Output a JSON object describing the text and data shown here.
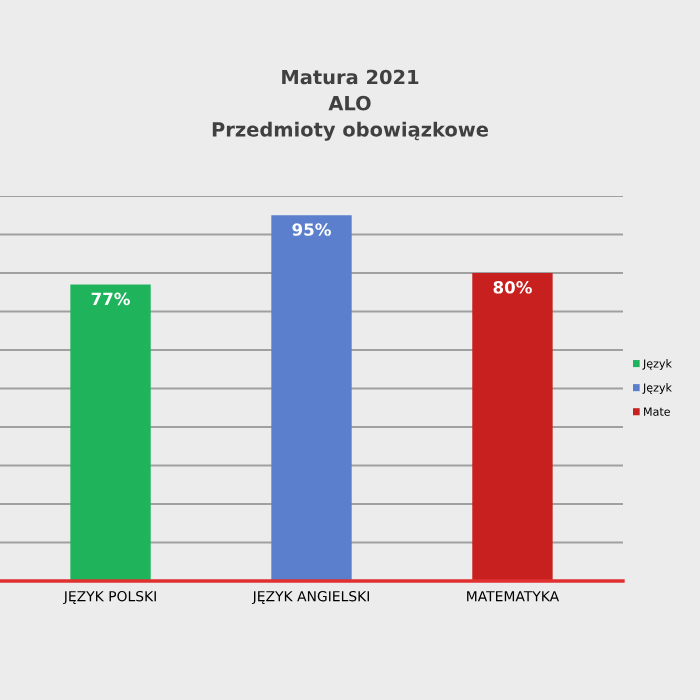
{
  "chart_data": {
    "type": "bar",
    "title": "Matura 2021\nALO\nPrzedmioty obowiązkowe",
    "categories": [
      "JĘZYK POLSKI",
      "JĘZYK ANGIELSKI",
      "MATEMATYKA"
    ],
    "series": [
      {
        "name": "Język",
        "color": "#1fb45c",
        "values": [
          77,
          null,
          null
        ],
        "value_labels": [
          "77%",
          null,
          null
        ]
      },
      {
        "name": "Język",
        "color": "#5b7fcc",
        "values": [
          null,
          95,
          null
        ],
        "value_labels": [
          null,
          "95%",
          null
        ]
      },
      {
        "name": "Mate",
        "color": "#c8201f",
        "values": [
          null,
          null,
          80
        ],
        "value_labels": [
          null,
          null,
          "80%"
        ]
      }
    ],
    "ylim": [
      0,
      100
    ],
    "yticks": [
      0,
      10,
      20,
      30,
      40,
      50,
      60,
      70,
      80,
      90,
      100
    ],
    "tick_labels": "x",
    "grid": "y",
    "legend": "right"
  }
}
